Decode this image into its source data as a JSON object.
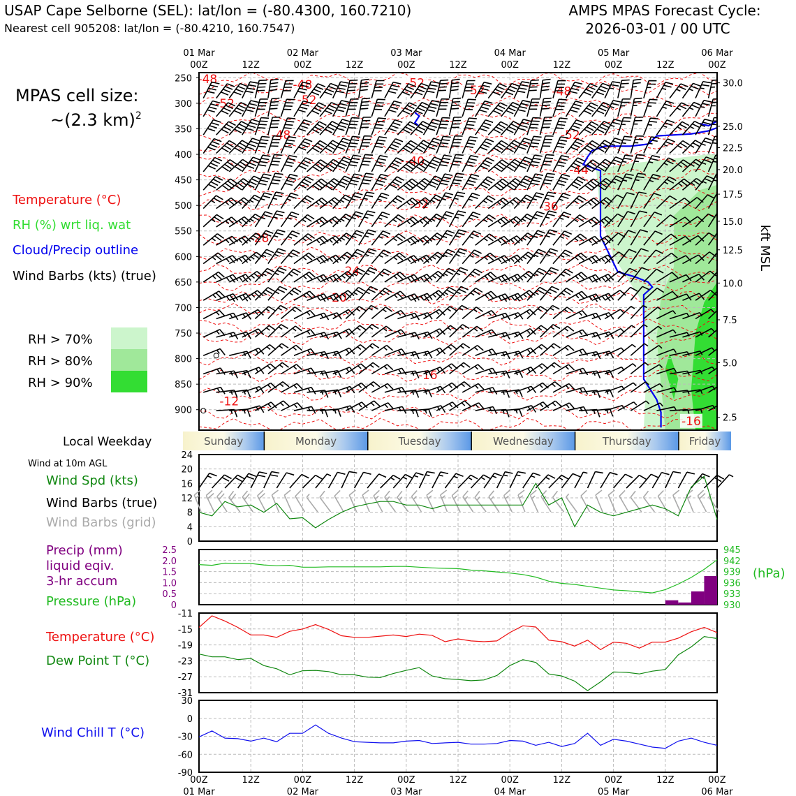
{
  "header": {
    "station": "USAP Cape Selborne (SEL): lat/lon = (-80.4300, 160.7210)",
    "nearest": "Nearest cell 905208: lat/lon = (-80.4210, 160.7547)",
    "cycle_title": "AMPS MPAS Forecast Cycle:",
    "cycle_time": "2026-03-01 / 00 UTC"
  },
  "legend": {
    "cell_size_title": "MPAS cell size:",
    "cell_size_value": "~(2.3 km)",
    "cell_size_exp": "2",
    "temperature": "Temperature (°C)",
    "rh": "RH (%) wrt liq. wat",
    "cloud": "Cloud/Precip outline",
    "barbs": "Wind Barbs (kts) (true)",
    "rh70": "RH > 70%",
    "rh80": "RH > 80%",
    "rh90": "RH > 90%",
    "local_weekday": "Local Weekday",
    "wind_10m": "Wind at 10m AGL",
    "wind_spd": "Wind Spd (kts)",
    "wind_barbs_true": "Wind Barbs (true)",
    "wind_barbs_grid": "Wind Barbs (grid)",
    "precip1": "Precip (mm)",
    "precip2": "liquid eqiv.",
    "precip3": "3-hr accum",
    "pressure": "Pressure (hPa)",
    "pressure_unit": "(hPa)",
    "temp2": "Temperature (°C)",
    "dewpoint": "Dew Point T (°C)",
    "windchill": "Wind Chill T (°C)",
    "kft": "kft MSL"
  },
  "colors": {
    "temp": "#ee1111",
    "rh": "#33dd33",
    "cloud": "#0000ee",
    "dew": "#118811",
    "precip": "#800080",
    "pressure": "#22bb22",
    "windchill": "#1111ee",
    "grid_barb": "#aaaaaa",
    "rh70": "#ccf5cc",
    "rh80": "#a0e89a",
    "rh90": "#33dd33"
  },
  "time_axis": {
    "top_dates": [
      "01 Mar",
      "02 Mar",
      "03 Mar",
      "04 Mar",
      "05 Mar",
      "06 Mar"
    ],
    "hours": [
      "00Z",
      "12Z",
      "00Z",
      "12Z",
      "00Z",
      "12Z",
      "00Z",
      "12Z",
      "00Z",
      "12Z",
      "00Z"
    ],
    "hours_span": 120
  },
  "weekdays": [
    "Sunday",
    "Monday",
    "Tuesday",
    "Wednesday",
    "Thursday",
    "Friday"
  ],
  "chart_data": [
    {
      "type": "heatmap",
      "name": "vertical cross-section",
      "pressure_ticks": [
        250,
        300,
        350,
        400,
        450,
        500,
        550,
        600,
        650,
        700,
        750,
        800,
        850,
        900
      ],
      "ylim": [
        940,
        240
      ],
      "kft_ticks": [
        30.0,
        25.0,
        22.5,
        20.0,
        17.5,
        15.0,
        12.5,
        10.0,
        7.5,
        5.0,
        2.5
      ],
      "kft_pressure": [
        260,
        345,
        387,
        430,
        478,
        531,
        587,
        652,
        724,
        808,
        915
      ],
      "temperature_labels": [
        {
          "t": 2,
          "p": 252,
          "text": "-48"
        },
        {
          "t": 6,
          "p": 300,
          "text": "-52"
        },
        {
          "t": 24,
          "p": 263,
          "text": "-48"
        },
        {
          "t": 25,
          "p": 293,
          "text": "-52"
        },
        {
          "t": 19,
          "p": 362,
          "text": "-48"
        },
        {
          "t": 50,
          "p": 260,
          "text": "-52"
        },
        {
          "t": 64,
          "p": 274,
          "text": "-52"
        },
        {
          "t": 84,
          "p": 276,
          "text": "-48"
        },
        {
          "t": 86,
          "p": 362,
          "text": "-52"
        },
        {
          "t": 50,
          "p": 413,
          "text": "-40"
        },
        {
          "t": 88,
          "p": 430,
          "text": "-44"
        },
        {
          "t": 51,
          "p": 497,
          "text": "-32"
        },
        {
          "t": 81,
          "p": 502,
          "text": "-36"
        },
        {
          "t": 14,
          "p": 563,
          "text": "-28"
        },
        {
          "t": 35,
          "p": 628,
          "text": "-24"
        },
        {
          "t": 32,
          "p": 680,
          "text": "-20"
        },
        {
          "t": 53,
          "p": 832,
          "text": "-16"
        },
        {
          "t": 7,
          "p": 883,
          "text": "-12"
        },
        {
          "t": 114,
          "p": 922,
          "text": "-16"
        }
      ],
      "cloud_outline": [
        [
          59,
          318
        ],
        [
          60,
          340
        ],
        [
          61,
          345
        ],
        [
          92,
          358
        ],
        [
          94,
          330
        ],
        [
          100,
          314
        ],
        [
          105,
          316
        ],
        [
          113,
          320
        ],
        [
          113,
          340
        ],
        [
          116,
          342
        ],
        [
          117,
          344
        ],
        [
          120,
          335
        ]
      ],
      "cloud_outline_main": [
        [
          120,
          348
        ],
        [
          118,
          354
        ],
        [
          114,
          360
        ],
        [
          106,
          364
        ],
        [
          104,
          380
        ],
        [
          100,
          384
        ],
        [
          94,
          384
        ],
        [
          91,
          393
        ],
        [
          90,
          405
        ],
        [
          89,
          420
        ],
        [
          93,
          432
        ],
        [
          93,
          468
        ],
        [
          93,
          480
        ],
        [
          93,
          560
        ],
        [
          97,
          630
        ],
        [
          101,
          640
        ],
        [
          104,
          650
        ],
        [
          105,
          660
        ],
        [
          103,
          675
        ],
        [
          103,
          840
        ],
        [
          106,
          880
        ],
        [
          107,
          905
        ],
        [
          107,
          935
        ]
      ]
    },
    {
      "type": "line",
      "name": "wind speed 10m",
      "ylim": [
        0,
        24
      ],
      "yticks": [
        0,
        4,
        8,
        12,
        16,
        20,
        24
      ],
      "x": [
        0,
        3,
        6,
        9,
        12,
        15,
        18,
        21,
        24,
        27,
        30,
        33,
        36,
        39,
        42,
        45,
        48,
        51,
        54,
        57,
        60,
        63,
        66,
        69,
        72,
        75,
        78,
        81,
        84,
        87,
        90,
        93,
        96,
        99,
        102,
        105,
        108,
        111,
        114,
        117,
        120
      ],
      "series": [
        {
          "values": [
            8,
            7,
            11,
            9.5,
            10,
            8,
            10.5,
            6.2,
            6.5,
            3.7,
            6,
            8,
            9.5,
            10.3,
            11,
            11,
            10,
            10,
            9,
            10,
            10,
            10,
            10,
            10,
            10,
            10,
            16,
            10,
            12,
            4,
            10,
            8,
            7,
            8,
            9,
            10,
            9,
            7,
            15,
            18,
            6
          ]
        }
      ],
      "barb_speeds": [
        15,
        20,
        20,
        20,
        20,
        20,
        10,
        10,
        10,
        5,
        10,
        10,
        10,
        10,
        15,
        15,
        15,
        15,
        15,
        15,
        15,
        15,
        15,
        15,
        15,
        15,
        15,
        15,
        10,
        5,
        10,
        10,
        10,
        10,
        10,
        10,
        10,
        10,
        15,
        20,
        5
      ]
    },
    {
      "type": "bar",
      "name": "precip and pressure",
      "precip_ylim": [
        0,
        2.5
      ],
      "precip_ticks": [
        "0",
        "0.5",
        "1.0",
        "1.5",
        "2.0",
        "2.5"
      ],
      "pressure_ylim": [
        930,
        945
      ],
      "pressure_ticks": [
        "930",
        "933",
        "936",
        "939",
        "942",
        "945"
      ],
      "precip_bars": [
        {
          "t": 108,
          "v": 0.2
        },
        {
          "t": 111,
          "v": 0.1
        },
        {
          "t": 114,
          "v": 0.6
        },
        {
          "t": 117,
          "v": 1.3
        }
      ],
      "pressure_x": [
        0,
        3,
        6,
        9,
        12,
        15,
        18,
        21,
        24,
        27,
        30,
        33,
        36,
        39,
        42,
        45,
        48,
        51,
        54,
        57,
        60,
        63,
        66,
        69,
        72,
        75,
        78,
        81,
        84,
        87,
        90,
        93,
        96,
        99,
        102,
        105,
        108,
        111,
        114,
        117,
        120
      ],
      "pressure_values": [
        940.9,
        940.7,
        941.3,
        941.2,
        941.2,
        940.8,
        940.6,
        940.7,
        940.2,
        940.2,
        940.3,
        940.3,
        940.3,
        940.3,
        940.3,
        940.4,
        940.4,
        940.2,
        940.0,
        939.9,
        939.8,
        939.4,
        939.2,
        938.9,
        938.6,
        938.2,
        937.5,
        936.4,
        935.8,
        935.5,
        935.0,
        934.5,
        934.0,
        933.8,
        933.5,
        933.2,
        934.1,
        935.6,
        937.4,
        939.6,
        942.2
      ]
    },
    {
      "type": "line",
      "name": "temperature and dew point",
      "ylim": [
        -31,
        -11
      ],
      "yticks": [
        -11,
        -15,
        -19,
        -23,
        -27,
        -31
      ],
      "x": [
        0,
        3,
        6,
        9,
        12,
        15,
        18,
        21,
        24,
        27,
        30,
        33,
        36,
        39,
        42,
        45,
        48,
        51,
        54,
        57,
        60,
        63,
        66,
        69,
        72,
        75,
        78,
        81,
        84,
        87,
        90,
        93,
        96,
        99,
        102,
        105,
        108,
        111,
        114,
        117,
        120
      ],
      "series": [
        {
          "values": [
            -14.6,
            -11.7,
            -13.0,
            -14.6,
            -16.5,
            -16.5,
            -17.1,
            -15.6,
            -15.0,
            -13.9,
            -15.1,
            -16.7,
            -17.1,
            -17.1,
            -16.8,
            -16.5,
            -16.9,
            -16.3,
            -16.6,
            -18.2,
            -17.5,
            -18.0,
            -18.2,
            -18.0,
            -15.9,
            -14.2,
            -14.5,
            -17.8,
            -18.2,
            -19.3,
            -17.8,
            -20.2,
            -18.3,
            -18.6,
            -19.8,
            -18.3,
            -18.3,
            -17.3,
            -15.7,
            -14.6,
            -15.9
          ]
        },
        {
          "values": [
            -21.3,
            -22.0,
            -22.0,
            -22.7,
            -22.4,
            -24.2,
            -25.0,
            -26.5,
            -25.5,
            -25.4,
            -25.7,
            -26.5,
            -26.5,
            -27.1,
            -27.2,
            -26.2,
            -25.4,
            -24.7,
            -26.8,
            -27.5,
            -27.7,
            -28.0,
            -27.8,
            -26.7,
            -24.2,
            -22.7,
            -23.4,
            -26.3,
            -26.8,
            -28.1,
            -30.5,
            -28.3,
            -25.8,
            -25.9,
            -26.3,
            -25.6,
            -25.2,
            -21.5,
            -19.5,
            -16.9,
            -17.4
          ]
        }
      ]
    },
    {
      "type": "line",
      "name": "wind chill",
      "ylim": [
        -90,
        30
      ],
      "yticks": [
        30,
        0,
        -30,
        -60,
        -90
      ],
      "x": [
        0,
        3,
        6,
        9,
        12,
        15,
        18,
        21,
        24,
        27,
        30,
        33,
        36,
        39,
        42,
        45,
        48,
        51,
        54,
        57,
        60,
        63,
        66,
        69,
        72,
        75,
        78,
        81,
        84,
        87,
        90,
        93,
        96,
        99,
        102,
        105,
        108,
        111,
        114,
        117,
        120
      ],
      "series": [
        {
          "values": [
            -31,
            -21,
            -33,
            -34,
            -38,
            -33,
            -39,
            -25,
            -25,
            -11,
            -25,
            -33,
            -39,
            -40,
            -41,
            -41,
            -38,
            -37,
            -42,
            -41,
            -40,
            -43,
            -43,
            -42,
            -37,
            -38,
            -45,
            -40,
            -47,
            -42,
            -25,
            -45,
            -35,
            -38,
            -43,
            -48,
            -50,
            -38,
            -33,
            -40,
            -45
          ]
        }
      ]
    }
  ]
}
